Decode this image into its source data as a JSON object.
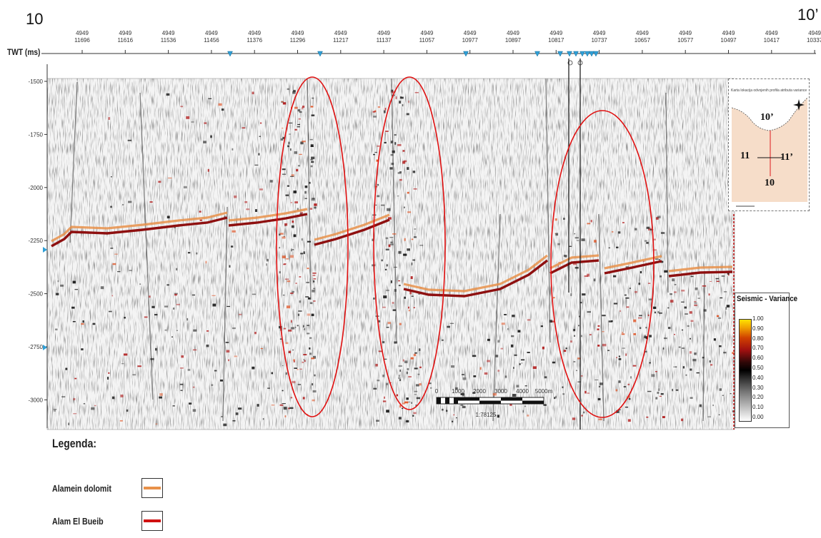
{
  "title_left": "10",
  "title_right": "10’",
  "axis_label": "TWT (ms)",
  "top_ticks": [
    {
      "line": "4949",
      "trace": "11696"
    },
    {
      "line": "4949",
      "trace": "11616"
    },
    {
      "line": "4949",
      "trace": "11536"
    },
    {
      "line": "4949",
      "trace": "11456"
    },
    {
      "line": "4949",
      "trace": "11376"
    },
    {
      "line": "4949",
      "trace": "11296"
    },
    {
      "line": "4949",
      "trace": "11217"
    },
    {
      "line": "4949",
      "trace": "11137"
    },
    {
      "line": "4949",
      "trace": "11057"
    },
    {
      "line": "4949",
      "trace": "10977"
    },
    {
      "line": "4949",
      "trace": "10897"
    },
    {
      "line": "4949",
      "trace": "10817"
    },
    {
      "line": "4949",
      "trace": "10737"
    },
    {
      "line": "4949",
      "trace": "10657"
    },
    {
      "line": "4949",
      "trace": "10577"
    },
    {
      "line": "4949",
      "trace": "10497"
    },
    {
      "line": "4949",
      "trace": "10417"
    },
    {
      "line": "4949",
      "trace": "10337"
    }
  ],
  "y_ticks": [
    "-1500",
    "-1750",
    "-2000",
    "-2250",
    "-2500",
    "-2750",
    "-3000"
  ],
  "scale_bar": {
    "labels": [
      "0",
      "1000",
      "2000",
      "3000",
      "4000",
      "5000m"
    ],
    "ratio": "1:78125"
  },
  "inset_map": {
    "title": "Karta lokacija odvojenih profila atributa variance",
    "label_top": "10’",
    "label_bottom": "10",
    "label_left": "11",
    "label_right": "11’"
  },
  "colorbar": {
    "title": "Seismic - Variance",
    "ticks": [
      "1.00",
      "0.90",
      "0.80",
      "0.70",
      "0.60",
      "0.50",
      "0.40",
      "0.30",
      "0.20",
      "0.10",
      "0.00"
    ]
  },
  "legend": {
    "title": "Legenda:",
    "items": [
      {
        "label": "Alamein dolomit",
        "color": "#e8914a"
      },
      {
        "label": "Alam El Bueib",
        "color": "#d01010"
      }
    ]
  },
  "highlight_color": "#e01010"
}
